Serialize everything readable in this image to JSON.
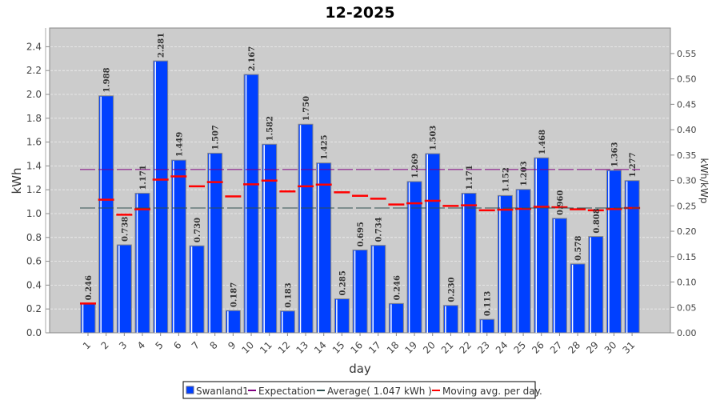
{
  "chart_data": {
    "type": "bar",
    "title": "12-2025",
    "xlabel": "day",
    "ylabel": "kWh",
    "y2label": "kWh/kWp",
    "ylim": [
      0,
      2.55
    ],
    "y2lim": [
      0,
      0.6
    ],
    "yticks": [
      "0.0",
      "0.2",
      "0.4",
      "0.6",
      "0.8",
      "1.0",
      "1.2",
      "1.4",
      "1.6",
      "1.8",
      "2.0",
      "2.2",
      "2.4"
    ],
    "y2ticks": [
      "0.00",
      "0.05",
      "0.10",
      "0.15",
      "0.20",
      "0.25",
      "0.30",
      "0.35",
      "0.40",
      "0.45",
      "0.50",
      "0.55"
    ],
    "kwp_ratio": 4.26,
    "grid": true,
    "categories": [
      "1",
      "2",
      "3",
      "4",
      "5",
      "6",
      "7",
      "8",
      "9",
      "10",
      "11",
      "12",
      "13",
      "14",
      "15",
      "16",
      "17",
      "18",
      "19",
      "20",
      "21",
      "22",
      "23",
      "24",
      "25",
      "26",
      "27",
      "28",
      "29",
      "30",
      "31"
    ],
    "series": [
      {
        "name": "Swanland1",
        "color": "#0040ff",
        "values": [
          0.246,
          1.988,
          0.738,
          1.171,
          2.281,
          1.449,
          0.73,
          1.507,
          0.187,
          2.167,
          1.582,
          0.183,
          1.75,
          1.425,
          0.285,
          0.695,
          0.734,
          0.246,
          1.269,
          1.503,
          0.23,
          1.171,
          0.113,
          1.152,
          1.203,
          1.468,
          0.96,
          0.578,
          0.808,
          1.363,
          1.277
        ],
        "labels": [
          "0.246",
          "1.988",
          "0.738",
          "1.171",
          "2.281",
          "1.449",
          "0.730",
          "1.507",
          "0.187",
          "2.167",
          "1.582",
          "0.183",
          "1.750",
          "1.425",
          "0.285",
          "0.695",
          "0.734",
          "0.246",
          "1.269",
          "1.503",
          "0.230",
          "1.171",
          "0.113",
          "1.152",
          "1.203",
          "1.468",
          "0.960",
          "0.578",
          "0.808",
          "1.363",
          "1.277"
        ]
      },
      {
        "name": "Expectation",
        "color": "#800080",
        "value": 1.37
      },
      {
        "name": "Average( 1.047 kWh )",
        "color": "#2f4f4f",
        "value": 1.047
      },
      {
        "name": "Moving avg. per day.",
        "color": "#ff0000",
        "values": [
          0.246,
          1.117,
          0.991,
          1.036,
          1.285,
          1.312,
          1.229,
          1.264,
          1.144,
          1.246,
          1.277,
          1.186,
          1.229,
          1.243,
          1.179,
          1.149,
          1.125,
          1.076,
          1.086,
          1.107,
          1.065,
          1.07,
          1.028,
          1.033,
          1.04,
          1.057,
          1.053,
          1.036,
          1.028,
          1.039,
          1.047
        ]
      }
    ],
    "legend": "bottom"
  }
}
